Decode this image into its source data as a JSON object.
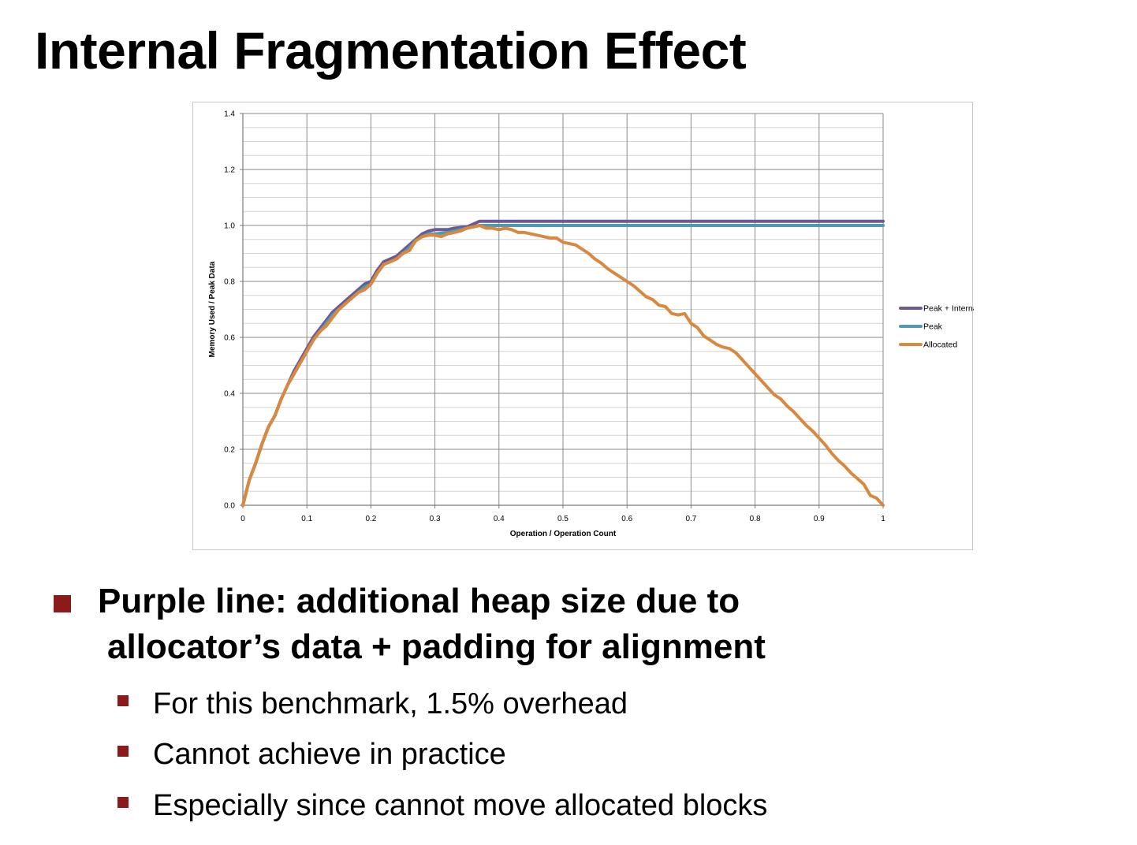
{
  "slide": {
    "title": "Internal Fragmentation Effect",
    "bullets": {
      "main_line1": "Purple line: additional heap size due to",
      "main_line2": "allocator’s data + padding for alignment",
      "sub": [
        "For this benchmark, 1.5% overhead",
        "Cannot achieve in practice",
        "Especially since cannot move allocated blocks"
      ]
    },
    "colors": {
      "bullet": "#8b1a1a"
    }
  },
  "chart_data": {
    "type": "line",
    "title": "",
    "xlabel": "Operation / Operation Count",
    "ylabel": "Memory Used / Peak Data",
    "xlim": [
      0,
      1
    ],
    "ylim": [
      0,
      1.4
    ],
    "x_ticks": [
      "0",
      "0.1",
      "0.2",
      "0.3",
      "0.4",
      "0.5",
      "0.6",
      "0.7",
      "0.8",
      "0.9",
      "1"
    ],
    "y_ticks": [
      "0.0",
      "0.2",
      "0.4",
      "0.6",
      "0.8",
      "1.0",
      "1.2",
      "1.4"
    ],
    "grid": true,
    "legend_position": "right",
    "series": [
      {
        "name": "Peak + Internal Frag",
        "color": "#6b5a93",
        "points": [
          [
            0,
            0
          ],
          [
            0.01,
            0.09
          ],
          [
            0.02,
            0.15
          ],
          [
            0.03,
            0.22
          ],
          [
            0.04,
            0.28
          ],
          [
            0.05,
            0.32
          ],
          [
            0.06,
            0.38
          ],
          [
            0.07,
            0.43
          ],
          [
            0.08,
            0.48
          ],
          [
            0.09,
            0.52
          ],
          [
            0.1,
            0.56
          ],
          [
            0.11,
            0.6
          ],
          [
            0.12,
            0.63
          ],
          [
            0.13,
            0.66
          ],
          [
            0.14,
            0.69
          ],
          [
            0.15,
            0.71
          ],
          [
            0.16,
            0.73
          ],
          [
            0.17,
            0.75
          ],
          [
            0.18,
            0.77
          ],
          [
            0.19,
            0.79
          ],
          [
            0.2,
            0.8
          ],
          [
            0.21,
            0.84
          ],
          [
            0.22,
            0.87
          ],
          [
            0.23,
            0.88
          ],
          [
            0.24,
            0.89
          ],
          [
            0.25,
            0.91
          ],
          [
            0.26,
            0.93
          ],
          [
            0.27,
            0.95
          ],
          [
            0.28,
            0.97
          ],
          [
            0.29,
            0.98
          ],
          [
            0.3,
            0.985
          ],
          [
            0.32,
            0.985
          ],
          [
            0.33,
            0.99
          ],
          [
            0.35,
            0.995
          ],
          [
            0.36,
            1.005
          ],
          [
            0.37,
            1.015
          ],
          [
            0.5,
            1.015
          ],
          [
            0.6,
            1.015
          ],
          [
            0.7,
            1.015
          ],
          [
            0.8,
            1.015
          ],
          [
            0.9,
            1.015
          ],
          [
            1.0,
            1.015
          ]
        ]
      },
      {
        "name": "Peak",
        "color": "#4f9ab0",
        "points": [
          [
            0,
            0
          ],
          [
            0.01,
            0.09
          ],
          [
            0.02,
            0.15
          ],
          [
            0.03,
            0.22
          ],
          [
            0.04,
            0.28
          ],
          [
            0.05,
            0.32
          ],
          [
            0.06,
            0.38
          ],
          [
            0.07,
            0.43
          ],
          [
            0.08,
            0.47
          ],
          [
            0.09,
            0.51
          ],
          [
            0.1,
            0.55
          ],
          [
            0.11,
            0.59
          ],
          [
            0.12,
            0.62
          ],
          [
            0.13,
            0.65
          ],
          [
            0.14,
            0.68
          ],
          [
            0.15,
            0.7
          ],
          [
            0.16,
            0.72
          ],
          [
            0.17,
            0.74
          ],
          [
            0.18,
            0.76
          ],
          [
            0.19,
            0.78
          ],
          [
            0.2,
            0.79
          ],
          [
            0.21,
            0.83
          ],
          [
            0.22,
            0.86
          ],
          [
            0.23,
            0.87
          ],
          [
            0.24,
            0.88
          ],
          [
            0.25,
            0.9
          ],
          [
            0.26,
            0.92
          ],
          [
            0.27,
            0.945
          ],
          [
            0.28,
            0.96
          ],
          [
            0.29,
            0.97
          ],
          [
            0.3,
            0.97
          ],
          [
            0.32,
            0.975
          ],
          [
            0.34,
            0.985
          ],
          [
            0.36,
            0.995
          ],
          [
            0.37,
            1.0
          ],
          [
            0.5,
            1.0
          ],
          [
            0.6,
            1.0
          ],
          [
            0.7,
            1.0
          ],
          [
            0.8,
            1.0
          ],
          [
            0.9,
            1.0
          ],
          [
            1.0,
            1.0
          ]
        ]
      },
      {
        "name": "Allocated",
        "color": "#d9893f",
        "points": [
          [
            0,
            0
          ],
          [
            0.01,
            0.09
          ],
          [
            0.02,
            0.15
          ],
          [
            0.03,
            0.22
          ],
          [
            0.04,
            0.28
          ],
          [
            0.05,
            0.32
          ],
          [
            0.06,
            0.38
          ],
          [
            0.07,
            0.43
          ],
          [
            0.08,
            0.47
          ],
          [
            0.09,
            0.51
          ],
          [
            0.1,
            0.55
          ],
          [
            0.11,
            0.59
          ],
          [
            0.12,
            0.62
          ],
          [
            0.13,
            0.64
          ],
          [
            0.14,
            0.67
          ],
          [
            0.15,
            0.7
          ],
          [
            0.16,
            0.72
          ],
          [
            0.17,
            0.74
          ],
          [
            0.18,
            0.76
          ],
          [
            0.19,
            0.77
          ],
          [
            0.2,
            0.79
          ],
          [
            0.21,
            0.83
          ],
          [
            0.22,
            0.86
          ],
          [
            0.23,
            0.87
          ],
          [
            0.24,
            0.88
          ],
          [
            0.25,
            0.9
          ],
          [
            0.26,
            0.91
          ],
          [
            0.27,
            0.945
          ],
          [
            0.28,
            0.96
          ],
          [
            0.29,
            0.965
          ],
          [
            0.3,
            0.965
          ],
          [
            0.31,
            0.96
          ],
          [
            0.32,
            0.97
          ],
          [
            0.33,
            0.975
          ],
          [
            0.34,
            0.98
          ],
          [
            0.35,
            0.99
          ],
          [
            0.36,
            0.995
          ],
          [
            0.37,
            1.0
          ],
          [
            0.38,
            0.99
          ],
          [
            0.39,
            0.99
          ],
          [
            0.4,
            0.985
          ],
          [
            0.41,
            0.99
          ],
          [
            0.42,
            0.985
          ],
          [
            0.43,
            0.975
          ],
          [
            0.44,
            0.975
          ],
          [
            0.45,
            0.97
          ],
          [
            0.46,
            0.965
          ],
          [
            0.47,
            0.96
          ],
          [
            0.48,
            0.955
          ],
          [
            0.49,
            0.955
          ],
          [
            0.5,
            0.94
          ],
          [
            0.51,
            0.935
          ],
          [
            0.52,
            0.93
          ],
          [
            0.53,
            0.915
          ],
          [
            0.54,
            0.9
          ],
          [
            0.55,
            0.88
          ],
          [
            0.56,
            0.865
          ],
          [
            0.57,
            0.845
          ],
          [
            0.58,
            0.83
          ],
          [
            0.59,
            0.815
          ],
          [
            0.6,
            0.8
          ],
          [
            0.61,
            0.785
          ],
          [
            0.62,
            0.765
          ],
          [
            0.63,
            0.745
          ],
          [
            0.64,
            0.735
          ],
          [
            0.65,
            0.715
          ],
          [
            0.66,
            0.71
          ],
          [
            0.67,
            0.685
          ],
          [
            0.68,
            0.68
          ],
          [
            0.69,
            0.685
          ],
          [
            0.7,
            0.65
          ],
          [
            0.71,
            0.635
          ],
          [
            0.72,
            0.605
          ],
          [
            0.73,
            0.59
          ],
          [
            0.74,
            0.575
          ],
          [
            0.75,
            0.565
          ],
          [
            0.76,
            0.56
          ],
          [
            0.77,
            0.545
          ],
          [
            0.78,
            0.52
          ],
          [
            0.79,
            0.495
          ],
          [
            0.8,
            0.47
          ],
          [
            0.81,
            0.445
          ],
          [
            0.82,
            0.42
          ],
          [
            0.83,
            0.395
          ],
          [
            0.84,
            0.38
          ],
          [
            0.85,
            0.355
          ],
          [
            0.86,
            0.335
          ],
          [
            0.87,
            0.31
          ],
          [
            0.88,
            0.285
          ],
          [
            0.89,
            0.265
          ],
          [
            0.9,
            0.24
          ],
          [
            0.91,
            0.215
          ],
          [
            0.92,
            0.185
          ],
          [
            0.93,
            0.16
          ],
          [
            0.94,
            0.14
          ],
          [
            0.95,
            0.115
          ],
          [
            0.96,
            0.095
          ],
          [
            0.97,
            0.075
          ],
          [
            0.98,
            0.035
          ],
          [
            0.99,
            0.025
          ],
          [
            1.0,
            0
          ]
        ]
      }
    ]
  }
}
